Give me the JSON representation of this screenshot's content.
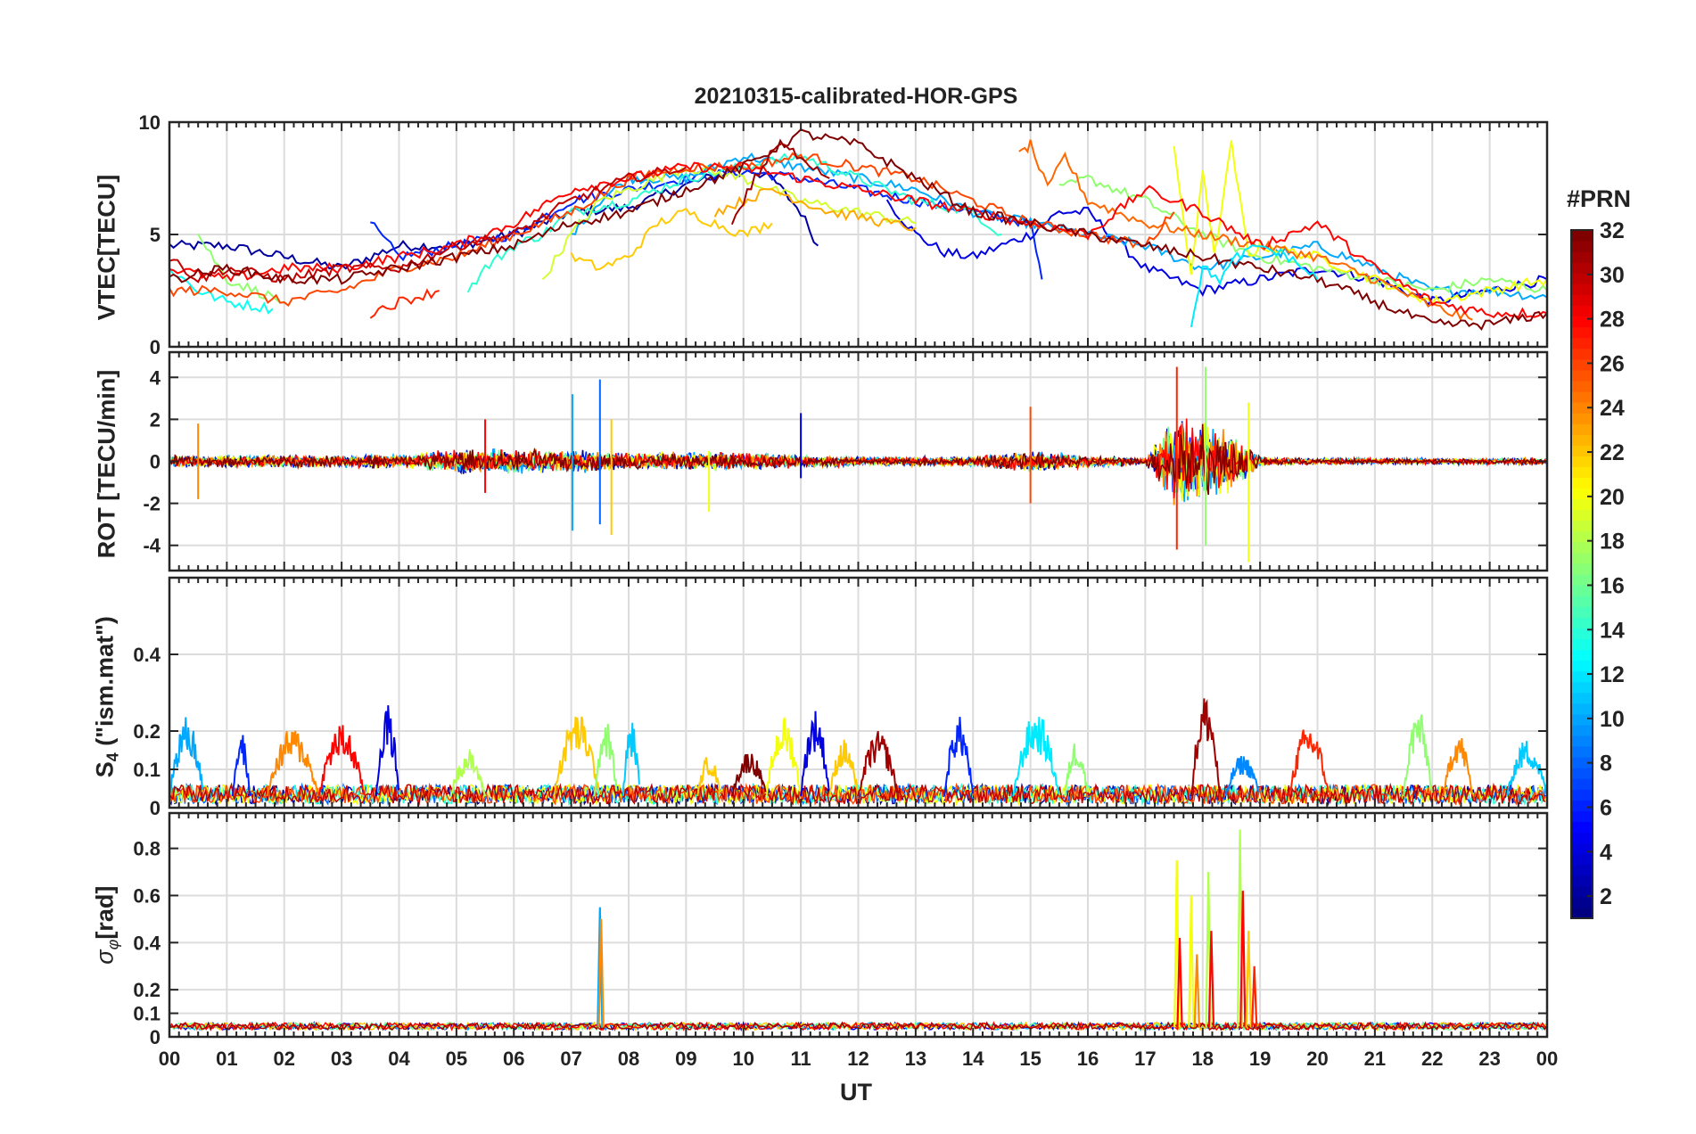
{
  "title": "20210315-calibrated-HOR-GPS",
  "chart_data": [
    {
      "type": "line",
      "panel": "vtec",
      "ylabel": "VTEC[TECU]",
      "ylim": [
        0,
        10
      ],
      "yticks": [
        0,
        5,
        10
      ],
      "xlim": [
        0,
        24
      ],
      "series": [
        {
          "name": "PRN 2",
          "prn": 2,
          "x": [
            0,
            1,
            2,
            3,
            4,
            5,
            6,
            7,
            8,
            9,
            10,
            10.5,
            11,
            11.3
          ],
          "y": [
            4.5,
            4.5,
            4.0,
            3.5,
            4.5,
            4.5,
            5.0,
            6.0,
            6.2,
            7.2,
            8.0,
            7.5,
            6.0,
            4.5
          ]
        },
        {
          "name": "PRN 4",
          "prn": 4,
          "x": [
            12.5,
            13,
            13.5,
            14,
            14.5,
            15,
            15.5,
            16,
            17,
            18,
            19,
            20,
            21,
            22,
            23,
            24
          ],
          "y": [
            6.5,
            5.0,
            4.2,
            4.0,
            4.5,
            5.0,
            6.0,
            6.0,
            3.5,
            2.5,
            3.0,
            3.5,
            3.0,
            2.0,
            2.5,
            3.0
          ]
        },
        {
          "name": "PRN 6",
          "prn": 6,
          "x": [
            3.5,
            4,
            5,
            6,
            7,
            8,
            9,
            10,
            11,
            12,
            13,
            14,
            15,
            15.2
          ],
          "y": [
            5.5,
            4.0,
            4.5,
            5.0,
            6.5,
            7.0,
            7.5,
            7.8,
            7.5,
            7.0,
            6.5,
            6.0,
            5.5,
            3.0
          ]
        },
        {
          "name": "PRN 10",
          "prn": 10,
          "x": [
            7.0,
            7.5,
            8,
            9,
            10,
            11,
            12,
            13,
            14,
            15,
            16,
            17,
            18,
            19,
            20,
            21,
            22,
            23,
            24
          ],
          "y": [
            5.0,
            6.5,
            7.5,
            7.5,
            8.5,
            8.0,
            7.5,
            7.0,
            6.0,
            5.5,
            5.0,
            4.5,
            3.5,
            4.0,
            4.5,
            3.5,
            2.5,
            2.5,
            2.2
          ]
        },
        {
          "name": "PRN 13",
          "prn": 13,
          "x": [
            0,
            0.5,
            1,
            1.5,
            1.8
          ],
          "y": [
            3.5,
            2.5,
            2.0,
            1.8,
            1.7
          ]
        },
        {
          "name": "PRN 14",
          "prn": 14,
          "x": [
            5.2,
            5.5,
            6,
            6.5,
            7,
            8,
            9,
            10,
            11,
            12,
            13,
            14,
            14.5
          ],
          "y": [
            2.5,
            3.5,
            4.5,
            5.0,
            6.0,
            6.5,
            7.5,
            8.0,
            8.5,
            7.5,
            6.5,
            6.0,
            5.0
          ]
        },
        {
          "name": "PRN 17",
          "prn": 17,
          "x": [
            0.5,
            1,
            1.5,
            2
          ],
          "y": [
            5.0,
            3.0,
            2.5,
            2.0
          ]
        },
        {
          "name": "PRN 17b",
          "prn": 17,
          "x": [
            15.5,
            16,
            17,
            18,
            19,
            20,
            21,
            22,
            23,
            24
          ],
          "y": [
            7.0,
            7.5,
            6.5,
            5.0,
            4.0,
            3.5,
            3.0,
            2.5,
            3.0,
            2.5
          ]
        },
        {
          "name": "PRN 19",
          "prn": 19,
          "x": [
            6.5,
            7,
            7.5,
            8,
            9,
            10,
            11,
            12,
            13
          ],
          "y": [
            3.0,
            5.0,
            6.5,
            7.0,
            8.0,
            7.5,
            6.5,
            6.0,
            5.5
          ]
        },
        {
          "name": "PRN 20",
          "prn": 20,
          "x": [
            17.5,
            17.8,
            18,
            18.2,
            18.5,
            18.8,
            19,
            20,
            21,
            22,
            23,
            24
          ],
          "y": [
            9.0,
            3.0,
            8.0,
            4.0,
            9.0,
            4.0,
            4.5,
            4.0,
            3.0,
            2.0,
            2.5,
            3.0
          ]
        },
        {
          "name": "PRN 22",
          "prn": 22,
          "x": [
            7.0,
            7.5,
            8,
            8.5,
            9,
            9.5,
            10,
            10.5
          ],
          "y": [
            4.0,
            3.5,
            4.0,
            5.5,
            6.0,
            5.5,
            5.0,
            5.5
          ]
        },
        {
          "name": "PRN 23",
          "prn": 23,
          "x": [
            9.5,
            10,
            10.5,
            11,
            11.5,
            12,
            12.5,
            13
          ],
          "y": [
            6.0,
            6.5,
            7.0,
            6.5,
            6.0,
            5.8,
            5.5,
            5.3
          ]
        },
        {
          "name": "PRN 25",
          "prn": 25,
          "x": [
            14.8,
            15,
            15.3,
            15.6,
            16,
            17,
            18,
            19,
            20,
            21,
            22,
            22.7
          ],
          "y": [
            8.5,
            9.0,
            7.0,
            8.5,
            6.5,
            5.5,
            5.0,
            4.5,
            4.0,
            3.0,
            1.8,
            1.2
          ]
        },
        {
          "name": "PRN 26",
          "prn": 26,
          "x": [
            0,
            1,
            2,
            3,
            4,
            5,
            6,
            7,
            8,
            9,
            10,
            11,
            12,
            13,
            14,
            15,
            16,
            17,
            17.5
          ],
          "y": [
            2.5,
            2.5,
            2.0,
            2.5,
            3.5,
            4.0,
            5.0,
            6.0,
            7.5,
            8.0,
            8.0,
            8.5,
            8.0,
            7.5,
            6.5,
            5.5,
            5.0,
            4.5,
            6.0
          ]
        },
        {
          "name": "PRN 27",
          "prn": 27,
          "x": [
            3.5,
            4,
            4.7
          ],
          "y": [
            1.5,
            2.0,
            2.5
          ]
        },
        {
          "name": "PRN 28",
          "prn": 28,
          "x": [
            0,
            1,
            2,
            3,
            4,
            5,
            6,
            7,
            8,
            9,
            10,
            11,
            12,
            13,
            14,
            15,
            16,
            17,
            18,
            19,
            20,
            21,
            22,
            23,
            24
          ],
          "y": [
            3.5,
            3.0,
            3.5,
            3.5,
            4.0,
            4.5,
            5.5,
            7.0,
            7.5,
            8.0,
            8.0,
            7.5,
            7.0,
            6.5,
            6.0,
            5.5,
            5.0,
            7.0,
            6.0,
            4.5,
            5.5,
            3.5,
            2.0,
            1.5,
            1.5
          ]
        },
        {
          "name": "PRN 30",
          "prn": 30,
          "x": [
            0,
            0.5,
            1,
            2,
            3,
            4,
            5,
            6,
            7,
            8,
            9
          ],
          "y": [
            4.0,
            3.0,
            3.5,
            3.0,
            3.5,
            3.5,
            4.5,
            5.0,
            6.5,
            7.5,
            8.0
          ]
        },
        {
          "name": "PRN 32",
          "prn": 32,
          "x": [
            0,
            1,
            2,
            3,
            4,
            5,
            6,
            7,
            8,
            9,
            10,
            11,
            12,
            13,
            14,
            15,
            16,
            17,
            18,
            19,
            20,
            21,
            22,
            23,
            24
          ],
          "y": [
            3.0,
            3.5,
            3.0,
            3.0,
            3.5,
            4.0,
            4.5,
            5.5,
            6.0,
            7.0,
            8.0,
            9.5,
            9.0,
            7.5,
            6.0,
            5.5,
            5.0,
            4.5,
            4.0,
            3.5,
            3.0,
            2.0,
            1.0,
            1.0,
            1.5
          ]
        },
        {
          "name": "PRN 31",
          "prn": 31,
          "x": [
            9.8,
            10.2,
            10.6,
            11,
            11.5
          ],
          "y": [
            5.5,
            7.5,
            9.0,
            8.5,
            7.5
          ]
        },
        {
          "name": "PRN 12",
          "prn": 12,
          "x": [
            17.8,
            18,
            18.3,
            18.6,
            19,
            19.5,
            20
          ],
          "y": [
            1.0,
            3.5,
            3.0,
            4.0,
            4.5,
            4.0,
            3.0
          ]
        }
      ]
    },
    {
      "type": "line",
      "panel": "rot",
      "ylabel": "ROT [TECU/min]",
      "ylim": [
        -5.2,
        5.2
      ],
      "yticks": [
        -4,
        -2,
        0,
        2,
        4
      ],
      "xlim": [
        0,
        24
      ],
      "noise_bands": [
        {
          "x": [
            0,
            1,
            2,
            3,
            4,
            5,
            6,
            7,
            8,
            9,
            10,
            11,
            12,
            13,
            14,
            15,
            16,
            17,
            17.5,
            18,
            18.5,
            19,
            20,
            21,
            22,
            23,
            24
          ],
          "amplitude": [
            0.4,
            0.4,
            0.4,
            0.4,
            0.5,
            0.8,
            0.8,
            0.8,
            0.6,
            0.6,
            0.6,
            0.4,
            0.3,
            0.3,
            0.3,
            0.7,
            0.4,
            0.2,
            3.0,
            2.5,
            2.0,
            0.3,
            0.2,
            0.2,
            0.2,
            0.2,
            0.2
          ]
        }
      ],
      "spikes": [
        {
          "prn": 10,
          "x": 7.02,
          "min": -3.3,
          "max": 3.2
        },
        {
          "prn": 8,
          "x": 7.5,
          "min": -3.0,
          "max": 3.9
        },
        {
          "prn": 22,
          "x": 7.7,
          "min": -3.5,
          "max": 2.0
        },
        {
          "prn": 24,
          "x": 0.5,
          "min": -1.8,
          "max": 1.8
        },
        {
          "prn": 20,
          "x": 9.4,
          "min": -2.4,
          "max": 0.5
        },
        {
          "prn": 26,
          "x": 15.0,
          "min": -2.0,
          "max": 2.6
        },
        {
          "prn": 27,
          "x": 17.55,
          "min": -4.2,
          "max": 4.5
        },
        {
          "prn": 17,
          "x": 18.05,
          "min": -4.0,
          "max": 4.5
        },
        {
          "prn": 20,
          "x": 18.8,
          "min": -4.8,
          "max": 2.8
        },
        {
          "prn": 4,
          "x": 11.0,
          "min": -0.8,
          "max": 2.3
        },
        {
          "prn": 28,
          "x": 5.5,
          "min": -1.5,
          "max": 2.0
        }
      ]
    },
    {
      "type": "line",
      "panel": "s4",
      "ylabel": "S4 (\"ism.mat\")",
      "ylabel_main": "S",
      "ylabel_sub": "4",
      "ylabel_rest": " (\"ism.mat\")",
      "ylim": [
        0,
        0.6
      ],
      "yticks": [
        0,
        0.1,
        0.2,
        0.4
      ],
      "ytick_labels": [
        "0",
        "0.1",
        "0.2",
        "0.4"
      ],
      "xlim": [
        0,
        24
      ],
      "bumps": [
        {
          "prn": 10,
          "x0": 0.0,
          "x1": 0.6,
          "peak": 0.24
        },
        {
          "prn": 6,
          "x0": 1.1,
          "x1": 1.4,
          "peak": 0.2
        },
        {
          "prn": 24,
          "x0": 1.7,
          "x1": 2.6,
          "peak": 0.21
        },
        {
          "prn": 28,
          "x0": 2.6,
          "x1": 3.4,
          "peak": 0.22
        },
        {
          "prn": 4,
          "x0": 3.6,
          "x1": 4.0,
          "peak": 0.27
        },
        {
          "prn": 18,
          "x0": 4.9,
          "x1": 5.5,
          "peak": 0.15
        },
        {
          "prn": 22,
          "x0": 6.7,
          "x1": 7.5,
          "peak": 0.25
        },
        {
          "prn": 17,
          "x0": 7.4,
          "x1": 7.8,
          "peak": 0.23
        },
        {
          "prn": 11,
          "x0": 7.9,
          "x1": 8.2,
          "peak": 0.23
        },
        {
          "prn": 22,
          "x0": 9.2,
          "x1": 9.6,
          "peak": 0.14
        },
        {
          "prn": 32,
          "x0": 9.8,
          "x1": 10.4,
          "peak": 0.15
        },
        {
          "prn": 20,
          "x0": 10.4,
          "x1": 11.0,
          "peak": 0.24
        },
        {
          "prn": 4,
          "x0": 11.0,
          "x1": 11.5,
          "peak": 0.26
        },
        {
          "prn": 22,
          "x0": 11.5,
          "x1": 12.0,
          "peak": 0.18
        },
        {
          "prn": 31,
          "x0": 12.0,
          "x1": 12.7,
          "peak": 0.2
        },
        {
          "prn": 6,
          "x0": 13.5,
          "x1": 14.0,
          "peak": 0.24
        },
        {
          "prn": 12,
          "x0": 14.7,
          "x1": 15.5,
          "peak": 0.25
        },
        {
          "prn": 17,
          "x0": 15.6,
          "x1": 16.0,
          "peak": 0.18
        },
        {
          "prn": 31,
          "x0": 17.8,
          "x1": 18.3,
          "peak": 0.3
        },
        {
          "prn": 9,
          "x0": 18.4,
          "x1": 19.0,
          "peak": 0.14
        },
        {
          "prn": 27,
          "x0": 19.5,
          "x1": 20.2,
          "peak": 0.22
        },
        {
          "prn": 17,
          "x0": 21.5,
          "x1": 22.0,
          "peak": 0.26
        },
        {
          "prn": 24,
          "x0": 22.2,
          "x1": 22.7,
          "peak": 0.2
        },
        {
          "prn": 11,
          "x0": 23.3,
          "x1": 24.0,
          "peak": 0.18
        }
      ]
    },
    {
      "type": "line",
      "panel": "sigma_phi",
      "ylabel": "σφ[rad]",
      "ylabel_main": "σ",
      "ylabel_sub": "φ",
      "ylabel_rest": "[rad]",
      "ylim": [
        0,
        0.95
      ],
      "yticks": [
        0,
        0.1,
        0.2,
        0.4,
        0.6,
        0.8
      ],
      "ytick_labels": [
        "0",
        "0.1",
        "0.2",
        "0.4",
        "0.6",
        "0.8"
      ],
      "xlim": [
        0,
        24
      ],
      "spikes": [
        {
          "prn": 10,
          "x": 7.5,
          "peak": 0.55
        },
        {
          "prn": 24,
          "x": 7.52,
          "peak": 0.5
        },
        {
          "prn": 20,
          "x": 17.55,
          "peak": 0.75
        },
        {
          "prn": 28,
          "x": 17.6,
          "peak": 0.42
        },
        {
          "prn": 20,
          "x": 17.8,
          "peak": 0.6
        },
        {
          "prn": 24,
          "x": 17.9,
          "peak": 0.35
        },
        {
          "prn": 18,
          "x": 18.1,
          "peak": 0.7
        },
        {
          "prn": 28,
          "x": 18.15,
          "peak": 0.45
        },
        {
          "prn": 18,
          "x": 18.65,
          "peak": 0.88
        },
        {
          "prn": 28,
          "x": 18.7,
          "peak": 0.62
        },
        {
          "prn": 22,
          "x": 18.8,
          "peak": 0.45
        },
        {
          "prn": 27,
          "x": 18.9,
          "peak": 0.3
        }
      ]
    }
  ],
  "xaxis": {
    "label": "UT",
    "tick_labels": [
      "00",
      "01",
      "02",
      "03",
      "04",
      "05",
      "06",
      "07",
      "08",
      "09",
      "10",
      "11",
      "12",
      "13",
      "14",
      "15",
      "16",
      "17",
      "18",
      "19",
      "20",
      "21",
      "22",
      "23",
      "00"
    ]
  },
  "colorbar": {
    "title": "#PRN",
    "range": [
      1,
      32
    ],
    "tick_labels": [
      "2",
      "4",
      "6",
      "8",
      "10",
      "12",
      "14",
      "16",
      "18",
      "20",
      "22",
      "24",
      "26",
      "28",
      "30",
      "32"
    ],
    "colormap": "jet"
  }
}
